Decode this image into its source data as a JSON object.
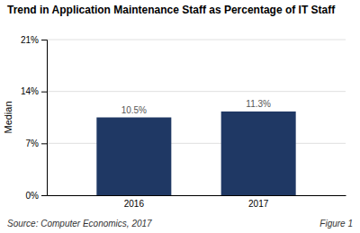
{
  "chart_data": {
    "type": "bar",
    "title": "Trend in Application Maintenance Staff as Percentage of IT Staff",
    "categories": [
      "2016",
      "2017"
    ],
    "values": [
      10.5,
      11.3
    ],
    "value_labels": [
      "10.5%",
      "11.3%"
    ],
    "data_labels": true,
    "color": "#1F3864",
    "ylabel": "Median",
    "ylim": [
      0,
      21
    ],
    "yticks": [
      {
        "value": 0,
        "label": "0%"
      },
      {
        "value": 7,
        "label": "7%"
      },
      {
        "value": 14,
        "label": "14%"
      },
      {
        "value": 21,
        "label": "21%"
      }
    ],
    "grid": true,
    "annotations": [
      "Source: Computer Economics, 2017",
      "Figure 1"
    ]
  }
}
